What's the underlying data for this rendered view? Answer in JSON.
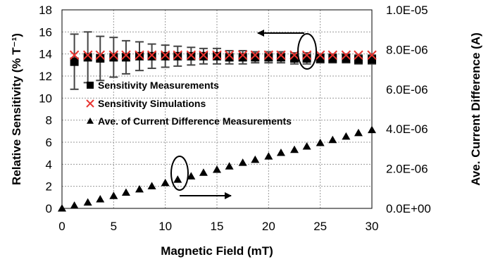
{
  "chart_data": {
    "type": "scatter",
    "xlabel": "Magnetic Field (mT)",
    "ylabel": "Relative Sensitivity (% T⁻¹)",
    "y2label": "Ave. Current Difference (A)",
    "xlim": [
      0,
      30
    ],
    "ylim": [
      0,
      18
    ],
    "y2lim": [
      0,
      1e-05
    ],
    "x_ticks": [
      "0",
      "5",
      "10",
      "15",
      "20",
      "25",
      "30"
    ],
    "y_ticks": [
      "0",
      "2",
      "4",
      "6",
      "8",
      "10",
      "12",
      "14",
      "16",
      "18"
    ],
    "y2_ticks": [
      "0.0E+00",
      "2.0E-06",
      "4.0E-06",
      "6.0E-06",
      "8.0E-06",
      "1.0E-05"
    ],
    "grid": true,
    "legend_position": "center-left",
    "series": [
      {
        "name": "Sensitivity Measurements",
        "marker": "square",
        "axis": "left",
        "x": [
          1.2,
          2.5,
          3.7,
          5.0,
          6.2,
          7.5,
          8.7,
          10.0,
          11.2,
          12.5,
          13.7,
          15.0,
          16.2,
          17.5,
          18.7,
          20.0,
          21.2,
          22.5,
          23.7,
          25.0,
          26.2,
          27.5,
          28.7,
          30.0
        ],
        "y": [
          13.3,
          13.7,
          13.6,
          13.7,
          13.7,
          13.8,
          13.8,
          13.8,
          13.8,
          13.8,
          13.8,
          13.8,
          13.7,
          13.7,
          13.7,
          13.7,
          13.7,
          13.6,
          13.6,
          13.6,
          13.6,
          13.6,
          13.5,
          13.5
        ],
        "error": [
          2.5,
          2.3,
          2.0,
          1.8,
          1.5,
          1.3,
          1.1,
          1.0,
          0.9,
          0.8,
          0.7,
          0.7,
          0.6,
          0.6,
          0.5,
          0.5,
          0.5,
          0.5,
          0.5,
          0.4,
          0.4,
          0.4,
          0.4,
          0.4
        ]
      },
      {
        "name": "Sensitivity Simulations",
        "marker": "x",
        "axis": "left",
        "x": [
          1.2,
          2.5,
          3.7,
          5.0,
          6.2,
          7.5,
          8.7,
          10.0,
          11.2,
          12.5,
          13.7,
          15.0,
          16.2,
          17.5,
          18.7,
          20.0,
          21.2,
          22.5,
          23.7,
          25.0,
          26.2,
          27.5,
          28.7,
          30.0
        ],
        "y": [
          13.9,
          13.9,
          13.9,
          13.9,
          13.9,
          13.9,
          13.9,
          13.9,
          13.9,
          13.9,
          13.9,
          13.9,
          13.9,
          13.9,
          13.9,
          13.9,
          13.9,
          13.9,
          13.9,
          13.9,
          13.9,
          13.9,
          13.9,
          13.9
        ]
      },
      {
        "name": "Ave. of Current Difference Measurements",
        "marker": "triangle",
        "axis": "right",
        "x": [
          0,
          1.2,
          2.5,
          3.7,
          5.0,
          6.2,
          7.5,
          8.7,
          10.0,
          11.2,
          12.5,
          13.7,
          15.0,
          16.2,
          17.5,
          18.7,
          20.0,
          21.2,
          22.5,
          23.7,
          25.0,
          26.2,
          27.5,
          28.7,
          30.0
        ],
        "y": [
          0,
          1.4e-07,
          3e-07,
          4.6e-07,
          6.3e-07,
          8e-07,
          9.6e-07,
          1.12e-06,
          1.28e-06,
          1.45e-06,
          1.62e-06,
          1.8e-06,
          1.95e-06,
          2.12e-06,
          2.3e-06,
          2.45e-06,
          2.62e-06,
          2.8e-06,
          2.95e-06,
          3.12e-06,
          3.3e-06,
          3.45e-06,
          3.62e-06,
          3.8e-06,
          3.95e-06
        ]
      }
    ]
  }
}
